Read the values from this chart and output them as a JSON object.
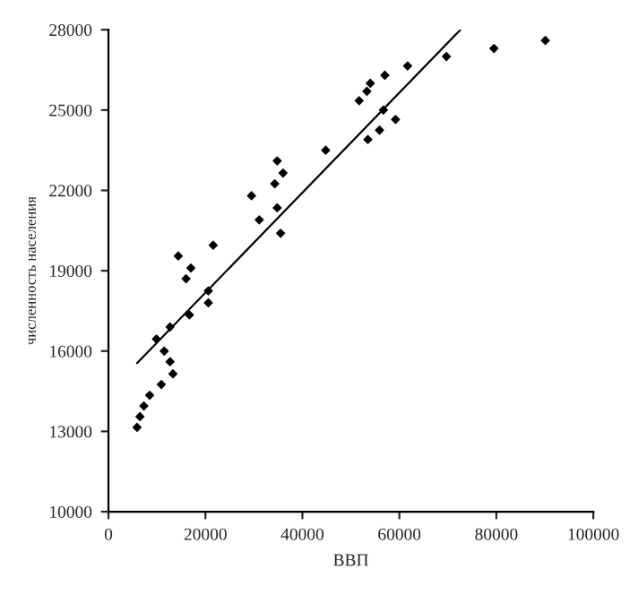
{
  "chart_data": {
    "type": "scatter",
    "xlabel": "ВВП",
    "ylabel": "численность населения",
    "xlim": [
      0,
      100000
    ],
    "xticks": [
      0,
      20000,
      40000,
      60000,
      80000,
      100000
    ],
    "ylim": [
      10000,
      28000
    ],
    "yticks": [
      10000,
      13000,
      16000,
      19000,
      22000,
      25000,
      28000
    ],
    "grid": false,
    "legend": false,
    "marker": "diamond",
    "series": [
      {
        "color": "#000000",
        "x": [
          5900,
          6500,
          7300,
          8500,
          9900,
          10900,
          11500,
          12700,
          12700,
          13300,
          14400,
          16000,
          16700,
          17000,
          20600,
          20600,
          21600,
          29500,
          31100,
          34300,
          34800,
          34800,
          35500,
          36000,
          44800,
          51700,
          53300,
          54000,
          53500,
          55900,
          56700,
          57000,
          59200,
          61700,
          69700,
          79500,
          90100
        ],
        "values": [
          13150,
          13550,
          13950,
          14350,
          16450,
          14750,
          16000,
          16900,
          15600,
          15150,
          19550,
          18700,
          17350,
          19100,
          18250,
          17800,
          19950,
          21800,
          20900,
          22250,
          21350,
          23100,
          20400,
          22650,
          23500,
          25350,
          25700,
          26000,
          23900,
          24250,
          25000,
          26300,
          24650,
          26650,
          27000,
          27300,
          27600
        ]
      },
      {
        "type": "line",
        "color": "#000000",
        "marker": "none",
        "x": [
          5900,
          72600
        ],
        "values": [
          15550,
          28000
        ]
      }
    ]
  }
}
